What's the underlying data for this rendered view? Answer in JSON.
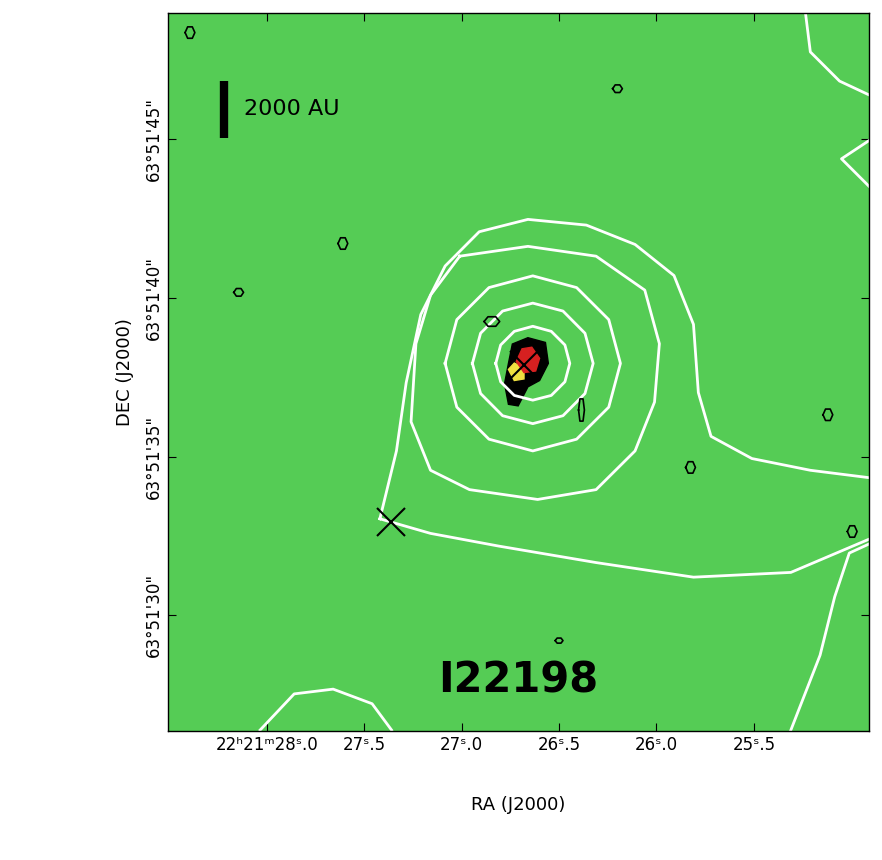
{
  "chart_data": {
    "type": "contour",
    "title": "I22198",
    "xlabel": "RA (J2000)",
    "ylabel": "DEC (J2000)",
    "xlim": [
      28.51,
      24.91
    ],
    "ylim": [
      26.35,
      48.99
    ],
    "xticks": [
      {
        "value": 28.0,
        "label": "22ʰ21ᵐ28ˢ.0"
      },
      {
        "value": 27.5,
        "label": "27ˢ.5"
      },
      {
        "value": 27.0,
        "label": "27ˢ.0"
      },
      {
        "value": 26.5,
        "label": "26ˢ.5"
      },
      {
        "value": 26.0,
        "label": "26ˢ.0"
      },
      {
        "value": 25.5,
        "label": "25ˢ.5"
      }
    ],
    "yticks": [
      {
        "value": 30,
        "label": "63°51'30\""
      },
      {
        "value": 35,
        "label": "63°51'35\""
      },
      {
        "value": 40,
        "label": "63°51'40\""
      },
      {
        "value": 45,
        "label": "63°51'45\""
      }
    ],
    "contours": [
      {
        "color": "#ffffff",
        "paths": [
          [
            [
              26.825,
              37.94
            ],
            [
              26.8,
              38.52
            ],
            [
              26.73,
              38.95
            ],
            [
              26.635,
              39.11
            ],
            [
              26.54,
              38.95
            ],
            [
              26.47,
              38.52
            ],
            [
              26.445,
              37.94
            ],
            [
              26.47,
              37.36
            ],
            [
              26.54,
              36.93
            ],
            [
              26.635,
              36.78
            ],
            [
              26.73,
              36.93
            ],
            [
              26.8,
              37.36
            ],
            [
              26.825,
              37.94
            ]
          ],
          [
            [
              26.945,
              37.94
            ],
            [
              26.903,
              38.89
            ],
            [
              26.79,
              39.59
            ],
            [
              26.635,
              39.84
            ],
            [
              26.48,
              39.59
            ],
            [
              26.367,
              38.89
            ],
            [
              26.325,
              37.94
            ],
            [
              26.367,
              36.99
            ],
            [
              26.48,
              36.29
            ],
            [
              26.635,
              36.04
            ],
            [
              26.79,
              36.29
            ],
            [
              26.903,
              36.99
            ],
            [
              26.945,
              37.94
            ]
          ],
          [
            [
              27.085,
              37.94
            ],
            [
              27.025,
              39.32
            ],
            [
              26.86,
              40.33
            ],
            [
              26.635,
              40.7
            ],
            [
              26.41,
              40.33
            ],
            [
              26.245,
              39.32
            ],
            [
              26.185,
              37.94
            ],
            [
              26.245,
              36.56
            ],
            [
              26.41,
              35.55
            ],
            [
              26.635,
              35.18
            ],
            [
              26.86,
              35.55
            ],
            [
              27.025,
              36.56
            ],
            [
              27.085,
              37.94
            ]
          ],
          [
            [
              27.01,
              41.32
            ],
            [
              26.66,
              41.63
            ],
            [
              26.31,
              41.32
            ],
            [
              26.06,
              40.25
            ],
            [
              25.985,
              38.56
            ],
            [
              26.01,
              36.72
            ],
            [
              26.11,
              35.18
            ],
            [
              26.31,
              33.96
            ],
            [
              26.61,
              33.65
            ],
            [
              26.96,
              33.96
            ],
            [
              27.16,
              34.57
            ],
            [
              27.26,
              36.1
            ],
            [
              27.235,
              38.56
            ],
            [
              27.16,
              40.09
            ],
            [
              27.01,
              41.32
            ]
          ],
          [
            [
              27.42,
              33.04
            ],
            [
              27.335,
              35.18
            ],
            [
              27.285,
              37.33
            ],
            [
              27.21,
              39.48
            ],
            [
              27.085,
              41.01
            ],
            [
              26.91,
              42.09
            ],
            [
              26.66,
              42.48
            ],
            [
              26.36,
              42.3
            ],
            [
              26.11,
              41.69
            ],
            [
              25.91,
              40.71
            ],
            [
              25.81,
              39.17
            ],
            [
              25.785,
              37.02
            ],
            [
              25.72,
              35.64
            ],
            [
              25.51,
              34.94
            ],
            [
              25.21,
              34.57
            ],
            [
              24.9,
              34.33
            ],
            [
              24.9,
              32.42
            ],
            [
              25.31,
              31.35
            ],
            [
              25.81,
              31.2
            ],
            [
              26.31,
              31.66
            ],
            [
              26.81,
              32.18
            ],
            [
              27.16,
              32.58
            ],
            [
              27.42,
              33.04
            ]
          ],
          [
            [
              25.235,
              48.99
            ],
            [
              25.21,
              47.76
            ],
            [
              25.06,
              46.84
            ],
            [
              24.9,
              46.38
            ]
          ],
          [
            [
              24.9,
              45.0
            ],
            [
              25.05,
              44.39
            ],
            [
              24.9,
              43.47
            ]
          ],
          [
            [
              25.31,
              26.38
            ],
            [
              25.16,
              28.74
            ],
            [
              25.085,
              30.58
            ],
            [
              25.01,
              31.96
            ],
            [
              24.9,
              32.27
            ]
          ],
          [
            [
              28.035,
              26.38
            ],
            [
              27.86,
              27.52
            ],
            [
              27.66,
              27.67
            ],
            [
              27.46,
              27.21
            ],
            [
              27.36,
              26.38
            ]
          ]
        ]
      },
      {
        "color": "#000000",
        "paths": [
          [
            [
              26.885,
              39.26
            ],
            [
              26.865,
              39.41
            ],
            [
              26.825,
              39.41
            ],
            [
              26.805,
              39.26
            ],
            [
              26.825,
              39.11
            ],
            [
              26.865,
              39.11
            ],
            [
              26.885,
              39.26
            ]
          ],
          [
            [
              26.4,
              36.47
            ],
            [
              26.393,
              36.82
            ],
            [
              26.377,
              36.82
            ],
            [
              26.37,
              36.47
            ],
            [
              26.377,
              36.12
            ],
            [
              26.393,
              36.12
            ],
            [
              26.4,
              36.47
            ]
          ],
          [
            [
              25.85,
              34.66
            ],
            [
              25.837,
              34.84
            ],
            [
              25.813,
              34.84
            ],
            [
              25.8,
              34.66
            ],
            [
              25.813,
              34.48
            ],
            [
              25.837,
              34.48
            ],
            [
              25.85,
              34.66
            ]
          ],
          [
            [
              25.145,
              36.32
            ],
            [
              25.132,
              36.5
            ],
            [
              25.108,
              36.5
            ],
            [
              25.095,
              36.32
            ],
            [
              25.108,
              36.14
            ],
            [
              25.132,
              36.14
            ],
            [
              25.145,
              36.32
            ]
          ],
          [
            [
              25.02,
              32.64
            ],
            [
              25.007,
              32.82
            ],
            [
              24.983,
              32.82
            ],
            [
              24.97,
              32.64
            ],
            [
              24.983,
              32.46
            ],
            [
              25.007,
              32.46
            ],
            [
              25.02,
              32.64
            ]
          ],
          [
            [
              26.225,
              46.6
            ],
            [
              26.212,
              46.72
            ],
            [
              26.188,
              46.72
            ],
            [
              26.175,
              46.6
            ],
            [
              26.188,
              46.48
            ],
            [
              26.212,
              46.48
            ],
            [
              26.225,
              46.6
            ]
          ],
          [
            [
              27.635,
              41.72
            ],
            [
              27.622,
              41.9
            ],
            [
              27.598,
              41.9
            ],
            [
              27.585,
              41.72
            ],
            [
              27.598,
              41.54
            ],
            [
              27.622,
              41.54
            ],
            [
              27.635,
              41.72
            ]
          ],
          [
            [
              28.17,
              40.18
            ],
            [
              28.157,
              40.3
            ],
            [
              28.133,
              40.3
            ],
            [
              28.12,
              40.18
            ],
            [
              28.133,
              40.06
            ],
            [
              28.157,
              40.06
            ],
            [
              28.17,
              40.18
            ]
          ],
          [
            [
              28.42,
              48.37
            ],
            [
              28.407,
              48.55
            ],
            [
              28.383,
              48.55
            ],
            [
              28.37,
              48.37
            ],
            [
              28.383,
              48.19
            ],
            [
              28.407,
              48.19
            ],
            [
              28.42,
              48.37
            ]
          ],
          [
            [
              26.52,
              29.2
            ],
            [
              26.51,
              29.28
            ],
            [
              26.49,
              29.28
            ],
            [
              26.48,
              29.2
            ],
            [
              26.49,
              29.12
            ],
            [
              26.51,
              29.12
            ],
            [
              26.52,
              29.2
            ]
          ]
        ]
      }
    ],
    "filled": [
      {
        "color": "#000000",
        "path": [
          [
            26.76,
            37.94
          ],
          [
            26.74,
            38.55
          ],
          [
            26.66,
            38.75
          ],
          [
            26.57,
            38.6
          ],
          [
            26.555,
            37.94
          ],
          [
            26.6,
            37.4
          ],
          [
            26.66,
            37.2
          ],
          [
            26.71,
            36.6
          ],
          [
            26.76,
            36.65
          ],
          [
            26.78,
            37.3
          ]
        ]
      },
      {
        "color": "#f0e040",
        "path": [
          [
            26.76,
            37.75
          ],
          [
            26.73,
            37.95
          ],
          [
            26.68,
            37.8
          ],
          [
            26.68,
            37.45
          ],
          [
            26.73,
            37.4
          ]
        ]
      },
      {
        "color": "#d62020",
        "path": [
          [
            26.72,
            38.0
          ],
          [
            26.69,
            38.4
          ],
          [
            26.64,
            38.45
          ],
          [
            26.6,
            38.1
          ],
          [
            26.62,
            37.7
          ],
          [
            26.68,
            37.65
          ]
        ]
      }
    ],
    "markers": {
      "marker": "x",
      "color": "#000000",
      "ra": [
        26.68,
        27.365
      ],
      "dec": [
        37.88,
        32.94
      ]
    },
    "scale_bar": {
      "label": "2000 AU",
      "ra": 28.22,
      "dec": [
        45.06,
        46.84
      ]
    }
  }
}
